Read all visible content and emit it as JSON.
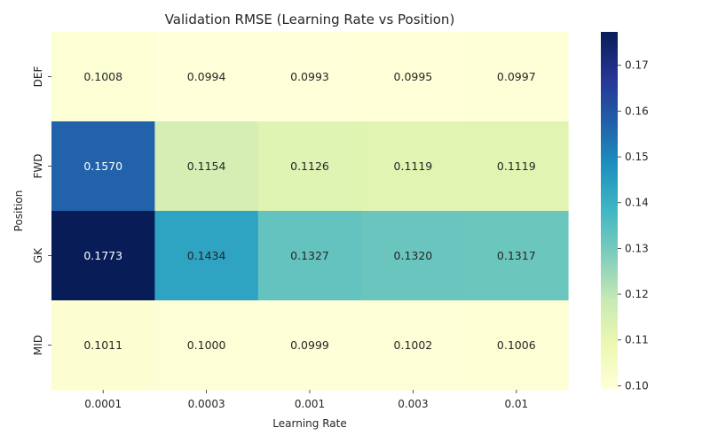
{
  "chart_data": {
    "type": "heatmap",
    "title": "Validation RMSE (Learning Rate vs Position)",
    "xlabel": "Learning Rate",
    "ylabel": "Position",
    "x_categories": [
      "0.0001",
      "0.0003",
      "0.001",
      "0.003",
      "0.01"
    ],
    "y_categories": [
      "DEF",
      "FWD",
      "GK",
      "MID"
    ],
    "values": [
      [
        0.1008,
        0.0994,
        0.0993,
        0.0995,
        0.0997
      ],
      [
        0.157,
        0.1154,
        0.1126,
        0.1119,
        0.1119
      ],
      [
        0.1773,
        0.1434,
        0.1327,
        0.132,
        0.1317
      ],
      [
        0.1011,
        0.1,
        0.0999,
        0.1002,
        0.1006
      ]
    ],
    "cell_labels": [
      [
        "0.1008",
        "0.0994",
        "0.0993",
        "0.0995",
        "0.0997"
      ],
      [
        "0.1570",
        "0.1154",
        "0.1126",
        "0.1119",
        "0.1119"
      ],
      [
        "0.1773",
        "0.1434",
        "0.1327",
        "0.1320",
        "0.1317"
      ],
      [
        "0.1011",
        "0.1000",
        "0.0999",
        "0.1002",
        "0.1006"
      ]
    ],
    "colormap": "YlGnBu",
    "colorbar": {
      "vmin": 0.0993,
      "vmax": 0.1773,
      "ticks": [
        0.1,
        0.11,
        0.12,
        0.13,
        0.14,
        0.15,
        0.16,
        0.17
      ],
      "tick_labels": [
        "0.10",
        "0.11",
        "0.12",
        "0.13",
        "0.14",
        "0.15",
        "0.16",
        "0.17"
      ]
    },
    "grid": false
  }
}
